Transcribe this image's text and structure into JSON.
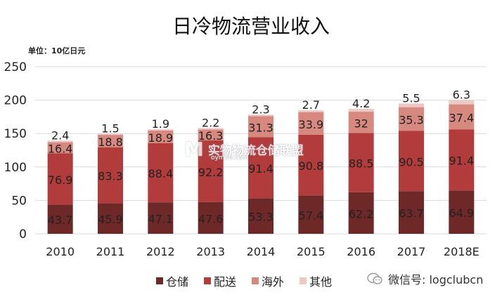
{
  "title": "日冷物流营业收入",
  "unit": "单位：10亿日元",
  "watermark": {
    "logo": "M",
    "text": "实物物流仓储联盟",
    "url": "oym56.com"
  },
  "wechat": "微信号: logclubcn",
  "colors": {
    "仓储": "#6e2828",
    "配送": "#b23b3b",
    "海外": "#d7887f",
    "其他": "#ecc9c6",
    "grid": "#d9d9d9"
  },
  "chart_data": {
    "type": "bar",
    "stacked": true,
    "categories": [
      "2010",
      "2011",
      "2012",
      "2013",
      "2014",
      "2015",
      "2016",
      "2017",
      "2018E"
    ],
    "series": [
      {
        "name": "仓储",
        "values": [
          43.7,
          45.9,
          47.1,
          47.6,
          53.3,
          57.4,
          62.2,
          63.7,
          64.9
        ]
      },
      {
        "name": "配送",
        "values": [
          76.9,
          83.3,
          88.4,
          92.2,
          91.4,
          90.8,
          88.5,
          90.5,
          91.4
        ]
      },
      {
        "name": "海外",
        "values": [
          16.4,
          18.8,
          18.9,
          16.3,
          31.3,
          33.9,
          32,
          35.3,
          37.4
        ]
      },
      {
        "name": "其他",
        "values": [
          2.4,
          1.5,
          1.9,
          2.2,
          2.3,
          2.7,
          4.2,
          5.5,
          6.3
        ]
      }
    ],
    "yticks": [
      "0",
      "50",
      "100",
      "150",
      "200",
      "250"
    ],
    "ylim": [
      0,
      250
    ],
    "grid": true,
    "legend": "bottom"
  }
}
